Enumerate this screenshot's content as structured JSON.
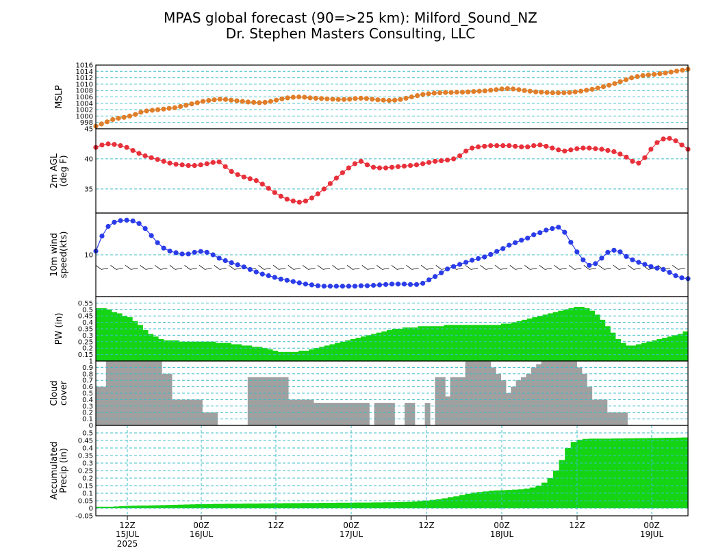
{
  "title": "MPAS global forecast (90=>25 km): Milford_Sound_NZ",
  "subtitle": "Dr. Stephen Masters Consulting, LLC",
  "chart_data": [
    {
      "type": "line",
      "ylabel": [
        "MSLP"
      ],
      "ylim": [
        996,
        1016
      ],
      "yticks": [
        998,
        1000,
        1002,
        1004,
        1006,
        1008,
        1010,
        1012,
        1014,
        1016
      ],
      "color": "#e07e2a",
      "values": [
        996.8,
        997.5,
        998.2,
        998.9,
        999.3,
        999.6,
        1000.0,
        1000.5,
        1001.2,
        1001.6,
        1001.8,
        1002.0,
        1002.2,
        1002.4,
        1002.6,
        1003.0,
        1003.4,
        1003.8,
        1004.2,
        1004.6,
        1004.9,
        1005.1,
        1005.3,
        1005.2,
        1005.0,
        1004.8,
        1004.6,
        1004.4,
        1004.3,
        1004.2,
        1004.3,
        1004.6,
        1005.0,
        1005.4,
        1005.7,
        1005.9,
        1006.0,
        1005.9,
        1005.7,
        1005.6,
        1005.5,
        1005.4,
        1005.3,
        1005.2,
        1005.2,
        1005.3,
        1005.5,
        1005.6,
        1005.5,
        1005.3,
        1005.1,
        1005.0,
        1004.9,
        1005.0,
        1005.2,
        1005.6,
        1006.0,
        1006.4,
        1006.8,
        1007.0,
        1007.2,
        1007.3,
        1007.4,
        1007.4,
        1007.5,
        1007.5,
        1007.6,
        1007.7,
        1007.8,
        1007.9,
        1008.1,
        1008.3,
        1008.5,
        1008.6,
        1008.5,
        1008.3,
        1008.0,
        1007.8,
        1007.6,
        1007.5,
        1007.4,
        1007.3,
        1007.3,
        1007.3,
        1007.4,
        1007.6,
        1007.8,
        1008.1,
        1008.4,
        1008.8,
        1009.2,
        1009.7,
        1010.2,
        1010.8,
        1011.4,
        1012.0,
        1012.4,
        1012.7,
        1012.9,
        1013.1,
        1013.3,
        1013.5,
        1013.8,
        1014.1,
        1014.4,
        1014.7
      ]
    },
    {
      "type": "line",
      "ylabel": [
        "2m AGL",
        "(deg F)"
      ],
      "ylim": [
        31,
        45
      ],
      "yticks": [
        35,
        40,
        45
      ],
      "color": "#e8303a",
      "values": [
        41.9,
        42.3,
        42.5,
        42.4,
        42.2,
        41.9,
        41.4,
        40.9,
        40.5,
        40.2,
        39.9,
        39.6,
        39.3,
        39.1,
        39.0,
        38.9,
        38.9,
        39.0,
        39.2,
        39.4,
        39.5,
        38.7,
        37.9,
        37.4,
        37.0,
        36.7,
        36.4,
        35.8,
        35.1,
        34.4,
        33.8,
        33.3,
        33.0,
        32.8,
        33.0,
        33.5,
        34.2,
        35.0,
        35.9,
        36.8,
        37.7,
        38.5,
        39.2,
        39.6,
        39.0,
        38.6,
        38.5,
        38.5,
        38.6,
        38.7,
        38.8,
        38.9,
        39.0,
        39.2,
        39.4,
        39.6,
        39.7,
        39.8,
        40.0,
        40.5,
        41.3,
        41.8,
        42.0,
        42.1,
        42.2,
        42.2,
        42.2,
        42.2,
        42.1,
        42.0,
        42.0,
        42.2,
        42.3,
        42.1,
        41.8,
        41.5,
        41.3,
        41.5,
        41.7,
        41.8,
        41.8,
        41.7,
        41.6,
        41.4,
        41.2,
        40.8,
        40.3,
        39.6,
        39.3,
        40.2,
        41.6,
        42.7,
        43.3,
        43.4,
        43.0,
        42.3,
        41.6
      ]
    },
    {
      "type": "line",
      "ylabel": [
        "10m wind",
        "speed(kts)"
      ],
      "ylim": [
        0,
        20
      ],
      "yticks": [
        10
      ],
      "color": "#2a3ce8",
      "values": [
        10.9,
        14.5,
        16.8,
        17.8,
        18.2,
        18.3,
        18.1,
        17.5,
        16.3,
        14.6,
        12.9,
        11.6,
        10.9,
        10.5,
        10.2,
        10.2,
        10.6,
        10.8,
        10.6,
        10.0,
        9.2,
        8.6,
        8.1,
        7.6,
        7.1,
        6.5,
        5.9,
        5.4,
        5.0,
        4.6,
        4.2,
        3.9,
        3.6,
        3.3,
        3.0,
        2.8,
        2.6,
        2.5,
        2.5,
        2.5,
        2.5,
        2.5,
        2.5,
        2.6,
        2.6,
        2.7,
        2.8,
        2.9,
        3.0,
        3.0,
        3.0,
        2.9,
        2.9,
        3.2,
        4.0,
        4.8,
        5.7,
        6.6,
        7.2,
        7.7,
        8.2,
        8.7,
        9.1,
        9.5,
        10.1,
        10.8,
        11.5,
        12.3,
        12.9,
        13.5,
        14.0,
        14.8,
        15.3,
        15.9,
        16.3,
        16.6,
        15.4,
        13.0,
        10.7,
        8.8,
        7.5,
        7.9,
        9.2,
        10.6,
        11.1,
        10.7,
        9.6,
        8.8,
        8.2,
        7.7,
        7.2,
        6.8,
        6.5,
        5.8,
        5.0,
        4.5,
        4.3
      ]
    },
    {
      "type": "area",
      "ylabel": [
        "PW (in)"
      ],
      "ylim": [
        0.1,
        0.6
      ],
      "yticks": [
        0.15,
        0.2,
        0.25,
        0.3,
        0.35,
        0.4,
        0.45,
        0.5,
        0.55
      ],
      "yticklabels": [
        "0.15",
        "0.2",
        "0.25",
        "0.3",
        "0.35",
        "0.4",
        "0.45",
        "0.5",
        "0.55"
      ],
      "color": "#14d414",
      "values": [
        0.51,
        0.51,
        0.5,
        0.48,
        0.47,
        0.45,
        0.44,
        0.41,
        0.38,
        0.34,
        0.31,
        0.29,
        0.27,
        0.26,
        0.26,
        0.26,
        0.25,
        0.25,
        0.25,
        0.25,
        0.25,
        0.25,
        0.25,
        0.24,
        0.24,
        0.24,
        0.23,
        0.23,
        0.22,
        0.22,
        0.21,
        0.21,
        0.2,
        0.19,
        0.18,
        0.17,
        0.17,
        0.17,
        0.17,
        0.18,
        0.18,
        0.19,
        0.2,
        0.21,
        0.22,
        0.23,
        0.24,
        0.25,
        0.26,
        0.27,
        0.28,
        0.29,
        0.3,
        0.31,
        0.32,
        0.33,
        0.34,
        0.35,
        0.35,
        0.36,
        0.36,
        0.36,
        0.37,
        0.37,
        0.37,
        0.37,
        0.37,
        0.38,
        0.38,
        0.38,
        0.38,
        0.38,
        0.38,
        0.38,
        0.38,
        0.38,
        0.38,
        0.38,
        0.39,
        0.39,
        0.4,
        0.41,
        0.42,
        0.43,
        0.44,
        0.45,
        0.46,
        0.47,
        0.48,
        0.49,
        0.5,
        0.51,
        0.52,
        0.52,
        0.51,
        0.49,
        0.46,
        0.42,
        0.37,
        0.32,
        0.27,
        0.24,
        0.22,
        0.22,
        0.23,
        0.24,
        0.25,
        0.26,
        0.27,
        0.28,
        0.29,
        0.3,
        0.31,
        0.33
      ]
    },
    {
      "type": "area",
      "ylabel": [
        "Cloud",
        "cover"
      ],
      "ylim": [
        0,
        1
      ],
      "yticks": [
        0,
        0.1,
        0.2,
        0.3,
        0.4,
        0.5,
        0.6,
        0.7,
        0.8,
        0.9,
        1
      ],
      "yticklabels": [
        "0",
        "0.1",
        "0.2",
        "0.3",
        "0.4",
        "0.5",
        "0.6",
        "0.7",
        "0.8",
        "0.9",
        "1"
      ],
      "color": "#a0a0a0",
      "values": [
        0.6,
        0.6,
        1.0,
        1.0,
        1.0,
        1.0,
        1.0,
        1.0,
        1.0,
        1.0,
        1.0,
        1.0,
        1.0,
        0.8,
        0.8,
        0.4,
        0.4,
        0.4,
        0.4,
        0.4,
        0.4,
        0.2,
        0.2,
        0.2,
        0.0,
        0.0,
        0.0,
        0.0,
        0.0,
        0.0,
        0.75,
        0.75,
        0.75,
        0.75,
        0.75,
        0.75,
        0.75,
        0.75,
        0.4,
        0.4,
        0.4,
        0.4,
        0.4,
        0.35,
        0.35,
        0.35,
        0.35,
        0.35,
        0.35,
        0.35,
        0.35,
        0.35,
        0.35,
        0.35,
        0.0,
        0.35,
        0.35,
        0.35,
        0.35,
        0.0,
        0.0,
        0.35,
        0.35,
        0.0,
        0.0,
        0.35,
        0.0,
        0.75,
        0.75,
        0.45,
        0.75,
        0.75,
        0.75,
        1.0,
        1.0,
        1.0,
        1.0,
        1.0,
        0.9,
        0.8,
        0.7,
        0.5,
        0.6,
        0.7,
        0.75,
        0.8,
        0.9,
        0.95,
        1.0,
        1.0,
        1.0,
        1.0,
        1.0,
        1.0,
        1.0,
        0.9,
        0.8,
        0.6,
        0.4,
        0.4,
        0.4,
        0.2,
        0.2,
        0.2,
        0.2,
        0.0,
        0.0,
        0.0,
        0.0,
        0.0,
        0.0,
        0.0,
        0.0,
        0.0,
        0.0,
        0.0,
        0.0
      ]
    },
    {
      "type": "area",
      "ylabel": [
        "Accumulated",
        "Precip (in)"
      ],
      "ylim": [
        -0.05,
        0.55
      ],
      "yticks": [
        -0.05,
        0,
        0.05,
        0.1,
        0.15,
        0.2,
        0.25,
        0.3,
        0.35,
        0.4,
        0.45,
        0.5
      ],
      "yticklabels": [
        "-0.05",
        "0",
        "0.05",
        "0.1",
        "0.15",
        "0.2",
        "0.25",
        "0.3",
        "0.35",
        "0.4",
        "0.45",
        "0.5"
      ],
      "color": "#14d414",
      "values": [
        0.01,
        0.01,
        0.01,
        0.012,
        0.014,
        0.016,
        0.017,
        0.018,
        0.018,
        0.019,
        0.02,
        0.021,
        0.022,
        0.023,
        0.024,
        0.025,
        0.026,
        0.027,
        0.027,
        0.028,
        0.029,
        0.029,
        0.03,
        0.03,
        0.03,
        0.031,
        0.031,
        0.031,
        0.032,
        0.032,
        0.033,
        0.033,
        0.034,
        0.034,
        0.034,
        0.035,
        0.035,
        0.035,
        0.036,
        0.036,
        0.036,
        0.037,
        0.037,
        0.037,
        0.038,
        0.038,
        0.038,
        0.039,
        0.039,
        0.04,
        0.04,
        0.041,
        0.042,
        0.043,
        0.045,
        0.048,
        0.052,
        0.056,
        0.06,
        0.066,
        0.073,
        0.08,
        0.088,
        0.096,
        0.104,
        0.108,
        0.112,
        0.116,
        0.118,
        0.12,
        0.122,
        0.124,
        0.126,
        0.13,
        0.138,
        0.15,
        0.17,
        0.2,
        0.25,
        0.32,
        0.4,
        0.44,
        0.455,
        0.46,
        0.462,
        0.462,
        0.462,
        0.462,
        0.463,
        0.463,
        0.464,
        0.464,
        0.465,
        0.465,
        0.466,
        0.466,
        0.467,
        0.468,
        0.468,
        0.469,
        0.47
      ]
    }
  ],
  "x_axis": {
    "tick_labels": [
      {
        "hour": "12Z",
        "day": "15JUL",
        "year": "2025"
      },
      {
        "hour": "00Z",
        "day": "16JUL",
        "year": ""
      },
      {
        "hour": "12Z",
        "day": "",
        "year": ""
      },
      {
        "hour": "00Z",
        "day": "17JUL",
        "year": ""
      },
      {
        "hour": "12Z",
        "day": "",
        "year": ""
      },
      {
        "hour": "00Z",
        "day": "18JUL",
        "year": ""
      },
      {
        "hour": "12Z",
        "day": "",
        "year": ""
      },
      {
        "hour": "00Z",
        "day": "19JUL",
        "year": ""
      }
    ]
  },
  "colors": {
    "gridline": "#3cbcc8",
    "frame": "#000000"
  }
}
